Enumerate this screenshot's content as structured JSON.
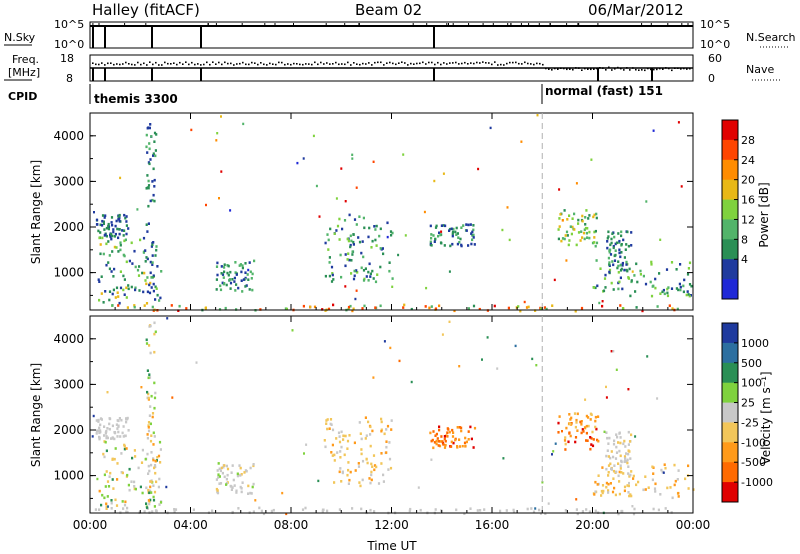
{
  "header": {
    "title": "Halley (fitACF)",
    "beam": "Beam 02",
    "date": "06/Mar/2012"
  },
  "top_panels": {
    "nsky_label": "N.Sky",
    "nsky_ticks": [
      "10^5",
      "10^0"
    ],
    "nsearch_label": "N.Search",
    "nsearch_ticks": [
      "10^5",
      "10^0"
    ],
    "freq_label_1": "Freq.",
    "freq_label_2": "[MHz]",
    "freq_ticks": [
      "18",
      "8"
    ],
    "nave_label": "Nave",
    "nave_ticks": [
      "60",
      "0"
    ],
    "cpid_label": "CPID",
    "cpid_1": "themis 3300",
    "cpid_2": "normal (fast) 151"
  },
  "colors": {
    "power_scale": [
      "#1f28d6",
      "#1f3a9e",
      "#2a8f55",
      "#52b46a",
      "#7fd23e",
      "#e8b817",
      "#ff8c00",
      "#ff4500",
      "#e00000"
    ],
    "velocity_scale": [
      "#1f3a9e",
      "#2c6fa0",
      "#2a8f55",
      "#7fd23e",
      "#c8c8c8",
      "#f2c65a",
      "#ff9a1a",
      "#ff6a00",
      "#e00000"
    ]
  },
  "chart_data": [
    {
      "type": "heatmap",
      "name": "power",
      "ylabel": "Slant Range [km]",
      "colorbar_label": "Power [dB]",
      "colorbar_ticks": [
        "28",
        "24",
        "20",
        "16",
        "12",
        "8",
        "4"
      ],
      "x_ticks": [
        "00:00",
        "04:00",
        "08:00",
        "12:00",
        "16:00",
        "20:00",
        "00:00"
      ],
      "y_ticks": [
        "1000",
        "2000",
        "3000",
        "4000"
      ],
      "xlim_hours": [
        0,
        24
      ],
      "ylim_km": [
        180,
        4500
      ],
      "cpid_change_hour": 18.0,
      "echo_regions": [
        {
          "t": [
            0.0,
            24.0
          ],
          "r": [
            180,
            320
          ],
          "power": [
            10,
            30
          ]
        },
        {
          "t": [
            0.3,
            2.8
          ],
          "r": [
            300,
            1800
          ],
          "power": [
            4,
            20
          ]
        },
        {
          "t": [
            0.2,
            1.5
          ],
          "r": [
            1800,
            2300
          ],
          "power": [
            4,
            10
          ]
        },
        {
          "t": [
            2.2,
            2.6
          ],
          "r": [
            400,
            4400
          ],
          "power": [
            4,
            12
          ]
        },
        {
          "t": [
            5.0,
            6.5
          ],
          "r": [
            600,
            1300
          ],
          "power": [
            4,
            14
          ]
        },
        {
          "t": [
            9.3,
            12.0
          ],
          "r": [
            800,
            2300
          ],
          "power": [
            4,
            16
          ]
        },
        {
          "t": [
            13.5,
            15.3
          ],
          "r": [
            1600,
            2100
          ],
          "power": [
            4,
            14
          ]
        },
        {
          "t": [
            18.6,
            20.2
          ],
          "r": [
            1600,
            2400
          ],
          "power": [
            8,
            22
          ]
        },
        {
          "t": [
            20.0,
            24.0
          ],
          "r": [
            500,
            1300
          ],
          "power": [
            4,
            18
          ]
        },
        {
          "t": [
            20.5,
            21.5
          ],
          "r": [
            1000,
            2000
          ],
          "power": [
            4,
            12
          ]
        }
      ]
    },
    {
      "type": "heatmap",
      "name": "velocity",
      "ylabel": "Slant Range [km]",
      "xlabel": "Time UT",
      "colorbar_label": "Velocity [m s^-1]",
      "colorbar_ticks": [
        "1000",
        "500",
        "100",
        "25",
        "-25",
        "-100",
        "-500",
        "-1000"
      ],
      "x_ticks": [
        "00:00",
        "04:00",
        "08:00",
        "12:00",
        "16:00",
        "20:00",
        "00:00"
      ],
      "y_ticks": [
        "1000",
        "2000",
        "3000",
        "4000"
      ],
      "xlim_hours": [
        0,
        24
      ],
      "ylim_km": [
        180,
        4500
      ],
      "cpid_change_hour": 18.0,
      "echo_regions": [
        {
          "t": [
            0.0,
            24.0
          ],
          "r": [
            180,
            320
          ],
          "vel": [
            -100,
            100
          ]
        },
        {
          "t": [
            0.3,
            2.8
          ],
          "r": [
            300,
            1800
          ],
          "vel": [
            -500,
            500
          ]
        },
        {
          "t": [
            0.2,
            1.5
          ],
          "r": [
            1800,
            2300
          ],
          "vel": [
            -100,
            100
          ]
        },
        {
          "t": [
            2.2,
            2.6
          ],
          "r": [
            400,
            4400
          ],
          "vel": [
            -500,
            500
          ]
        },
        {
          "t": [
            5.0,
            6.5
          ],
          "r": [
            600,
            1300
          ],
          "vel": [
            -300,
            200
          ]
        },
        {
          "t": [
            9.3,
            12.0
          ],
          "r": [
            800,
            2300
          ],
          "vel": [
            -500,
            0
          ]
        },
        {
          "t": [
            13.5,
            15.3
          ],
          "r": [
            1600,
            2100
          ],
          "vel": [
            -1000,
            -400
          ]
        },
        {
          "t": [
            18.6,
            20.2
          ],
          "r": [
            1600,
            2400
          ],
          "vel": [
            -1000,
            -300
          ]
        },
        {
          "t": [
            20.0,
            24.0
          ],
          "r": [
            500,
            1300
          ],
          "vel": [
            -500,
            -50
          ]
        },
        {
          "t": [
            20.5,
            21.5
          ],
          "r": [
            1000,
            2000
          ],
          "vel": [
            -200,
            100
          ]
        }
      ]
    }
  ],
  "nave_series": {
    "first_part_level": 42,
    "second_part_level": 30
  }
}
